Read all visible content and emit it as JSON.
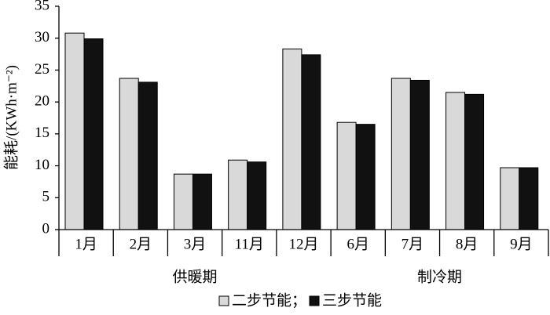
{
  "chart_data": {
    "type": "bar",
    "ylabel": "能耗/(KWh·m⁻²)",
    "groups": [
      {
        "name": "供暖期",
        "categories": [
          "1月",
          "2月",
          "3月",
          "11月",
          "12月"
        ]
      },
      {
        "name": "制冷期",
        "categories": [
          "6月",
          "7月",
          "8月",
          "9月"
        ]
      }
    ],
    "series": [
      {
        "name": "二步节能；",
        "color": "#d9d9d9",
        "values": [
          30.8,
          23.7,
          8.7,
          10.9,
          28.3,
          16.8,
          23.7,
          21.5,
          9.7
        ]
      },
      {
        "name": "三步节能",
        "color": "#111111",
        "values": [
          29.9,
          23.1,
          8.7,
          10.6,
          27.4,
          16.5,
          23.4,
          21.2,
          9.7
        ]
      }
    ],
    "ylim": [
      0,
      35
    ],
    "yticks": [
      0,
      5,
      10,
      15,
      20,
      25,
      30,
      35
    ]
  }
}
